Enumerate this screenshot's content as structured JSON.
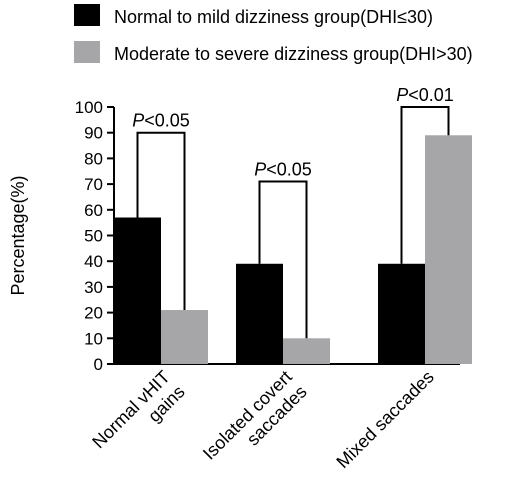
{
  "chart_data": {
    "type": "bar",
    "ylabel": "Percentage(%)",
    "xlabel": "",
    "ylim": [
      0,
      100
    ],
    "yticks": [
      0,
      10,
      20,
      30,
      40,
      50,
      60,
      70,
      80,
      90,
      100
    ],
    "grid": false,
    "legend_position": "top",
    "categories": [
      [
        "Normal vHIT",
        "gains"
      ],
      [
        "Isolated covert",
        "saccades"
      ],
      [
        "Mixed saccades"
      ]
    ],
    "series": [
      {
        "name": "Normal to mild dizziness group(DHI≤30)",
        "color": "#000000",
        "values": [
          57,
          39,
          39
        ]
      },
      {
        "name": "Moderate to severe dizziness group(DHI>30)",
        "color": "#a6a6a8",
        "values": [
          21,
          10,
          89
        ]
      }
    ],
    "significance": [
      {
        "category_index": 0,
        "p_prefix": "P",
        "p_suffix": "<0.05",
        "bracket_top": 90
      },
      {
        "category_index": 1,
        "p_prefix": "P",
        "p_suffix": "<0.05",
        "bracket_top": 71
      },
      {
        "category_index": 2,
        "p_prefix": "P",
        "p_suffix": "<0.01",
        "bracket_top": 100
      }
    ]
  }
}
